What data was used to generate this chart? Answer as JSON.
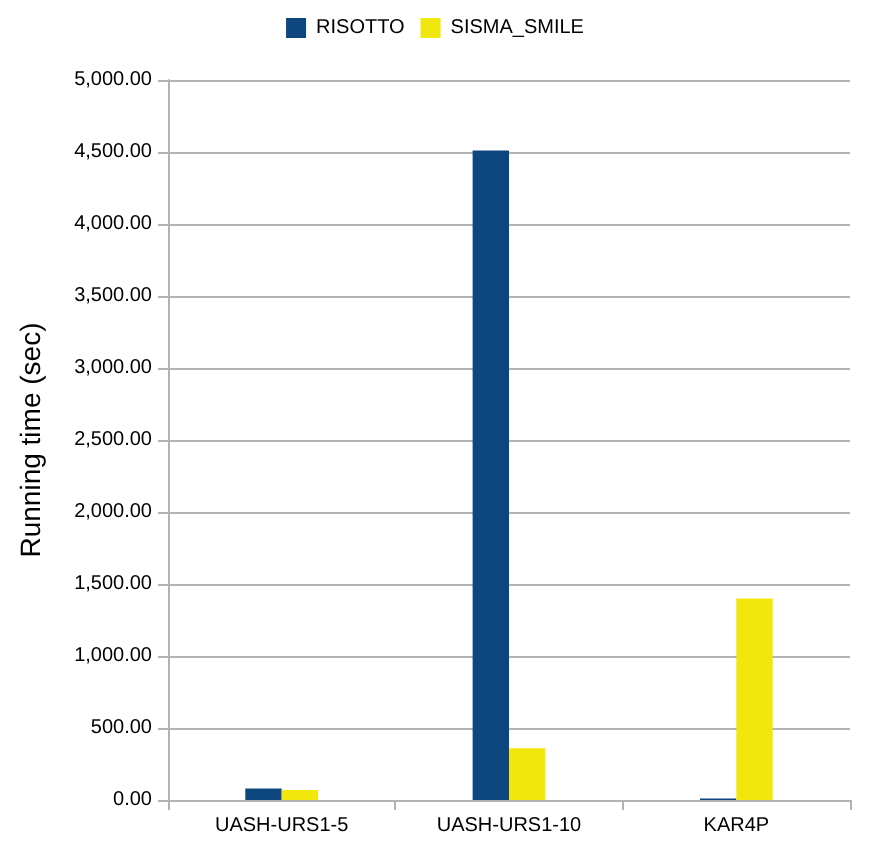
{
  "chart_data": {
    "type": "bar",
    "ylabel": "Running time (sec)",
    "categories": [
      "UASH-URS1-5",
      "UASH-URS1-10",
      "KAR4P"
    ],
    "series": [
      {
        "name": "RISOTTO",
        "color": "#0e4680",
        "values": [
          80,
          4510,
          10
        ]
      },
      {
        "name": "SISMA_SMILE",
        "color": "#f2e70c",
        "values": [
          70,
          360,
          1400
        ]
      }
    ],
    "ylim": [
      0,
      5000
    ],
    "yticks": [
      {
        "value": 0,
        "label": "0.00"
      },
      {
        "value": 500,
        "label": "500.00"
      },
      {
        "value": 1000,
        "label": "1,000.00"
      },
      {
        "value": 1500,
        "label": "1,500.00"
      },
      {
        "value": 2000,
        "label": "2,000.00"
      },
      {
        "value": 2500,
        "label": "2,500.00"
      },
      {
        "value": 3000,
        "label": "3,000.00"
      },
      {
        "value": 3500,
        "label": "3,500.00"
      },
      {
        "value": 4000,
        "label": "4,000.00"
      },
      {
        "value": 4500,
        "label": "4,500.00"
      },
      {
        "value": 5000,
        "label": "5,000.00"
      }
    ],
    "grid": "y",
    "legend": "top"
  }
}
